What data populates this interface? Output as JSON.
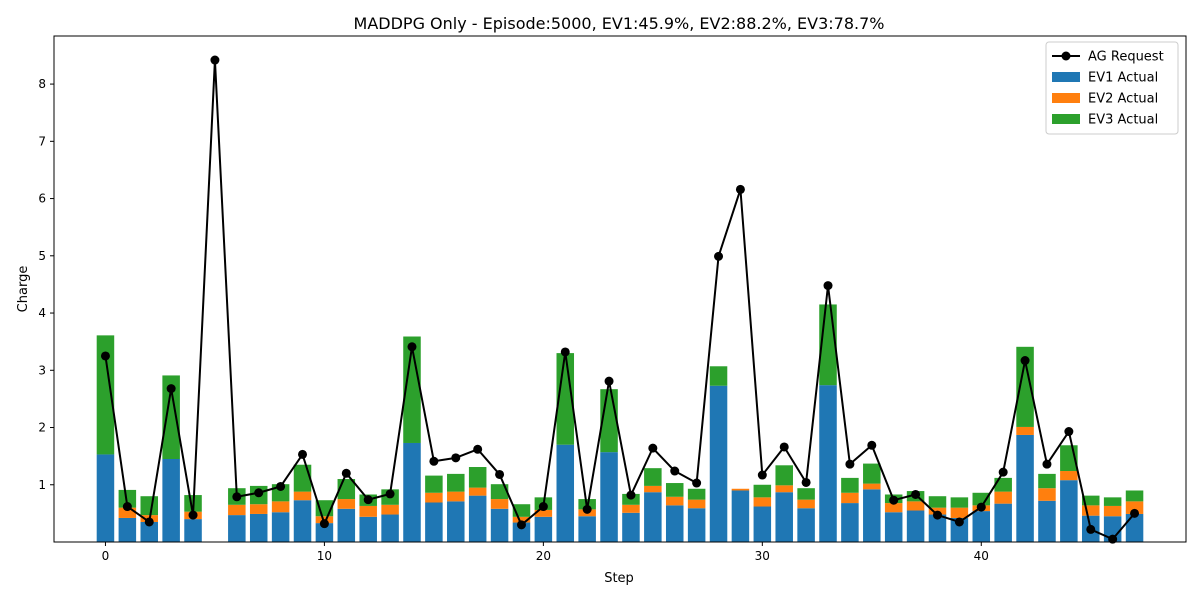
{
  "chart_data": {
    "type": "bar",
    "title": "MADDPG Only - Episode:5000, EV1:45.9%, EV2:88.2%, EV3:78.7%",
    "xlabel": "Step",
    "ylabel": "Charge",
    "xlim": [
      -2.35,
      49.35
    ],
    "ylim": [
      0,
      8.84
    ],
    "xticks": [
      0,
      10,
      20,
      30,
      40
    ],
    "yticks": [
      1,
      2,
      3,
      4,
      5,
      6,
      7,
      8
    ],
    "grid": false,
    "legend": "top-right",
    "x": [
      0,
      1,
      2,
      3,
      4,
      5,
      6,
      7,
      8,
      9,
      10,
      11,
      12,
      13,
      14,
      15,
      16,
      17,
      18,
      19,
      20,
      21,
      22,
      23,
      24,
      25,
      26,
      27,
      28,
      29,
      30,
      31,
      32,
      33,
      34,
      35,
      36,
      37,
      38,
      39,
      40,
      41,
      42,
      43,
      44,
      45,
      46,
      47
    ],
    "series": [
      {
        "name": "EV1 Actual",
        "type": "bar",
        "color": "#1f77b4",
        "values": [
          1.53,
          0.42,
          0.35,
          1.45,
          0.4,
          0,
          0.47,
          0.49,
          0.52,
          0.73,
          0.33,
          0.58,
          0.44,
          0.48,
          1.73,
          0.69,
          0.71,
          0.81,
          0.58,
          0.34,
          0.44,
          1.7,
          0.45,
          1.57,
          0.51,
          0.87,
          0.64,
          0.59,
          2.73,
          0.9,
          0.62,
          0.87,
          0.59,
          2.74,
          0.68,
          0.92,
          0.52,
          0.55,
          0.48,
          0.42,
          0.54,
          0.67,
          1.87,
          0.72,
          1.08,
          0.46,
          0.45,
          0.49
        ]
      },
      {
        "name": "EV2 Actual",
        "type": "bar",
        "color": "#ff7f0e",
        "values": [
          0,
          0.18,
          0.12,
          0,
          0.13,
          0,
          0.18,
          0.17,
          0.19,
          0.15,
          0.12,
          0.17,
          0.19,
          0.17,
          0,
          0.17,
          0.17,
          0.14,
          0.17,
          0.1,
          0.12,
          0,
          0.12,
          0,
          0.14,
          0.11,
          0.15,
          0.15,
          0,
          0.03,
          0.16,
          0.12,
          0.15,
          0,
          0.18,
          0.1,
          0.16,
          0.16,
          0.12,
          0.18,
          0.1,
          0.21,
          0.14,
          0.22,
          0.16,
          0.18,
          0.18,
          0.22
        ]
      },
      {
        "name": "EV3 Actual",
        "type": "bar",
        "color": "#2ca02c",
        "values": [
          2.08,
          0.31,
          0.33,
          1.46,
          0.29,
          0,
          0.29,
          0.32,
          0.3,
          0.47,
          0.28,
          0.35,
          0.2,
          0.27,
          1.86,
          0.3,
          0.31,
          0.36,
          0.26,
          0.22,
          0.22,
          1.6,
          0.18,
          1.1,
          0.19,
          0.31,
          0.24,
          0.19,
          0.34,
          0,
          0.22,
          0.35,
          0.2,
          1.41,
          0.26,
          0.35,
          0.15,
          0.18,
          0.2,
          0.18,
          0.22,
          0.24,
          1.4,
          0.25,
          0.45,
          0.17,
          0.15,
          0.19
        ]
      },
      {
        "name": "AG Request",
        "type": "line",
        "color": "#000000",
        "values": [
          3.25,
          0.62,
          0.35,
          2.68,
          0.47,
          8.42,
          0.79,
          0.86,
          0.97,
          1.53,
          0.32,
          1.2,
          0.74,
          0.84,
          3.41,
          1.41,
          1.47,
          1.62,
          1.18,
          0.3,
          0.62,
          3.32,
          0.57,
          2.81,
          0.82,
          1.64,
          1.24,
          1.03,
          4.99,
          6.16,
          1.17,
          1.66,
          1.04,
          4.48,
          1.36,
          1.69,
          0.73,
          0.83,
          0.47,
          0.35,
          0.61,
          1.22,
          3.17,
          1.36,
          1.93,
          0.22,
          0.05,
          0.5
        ]
      }
    ]
  }
}
